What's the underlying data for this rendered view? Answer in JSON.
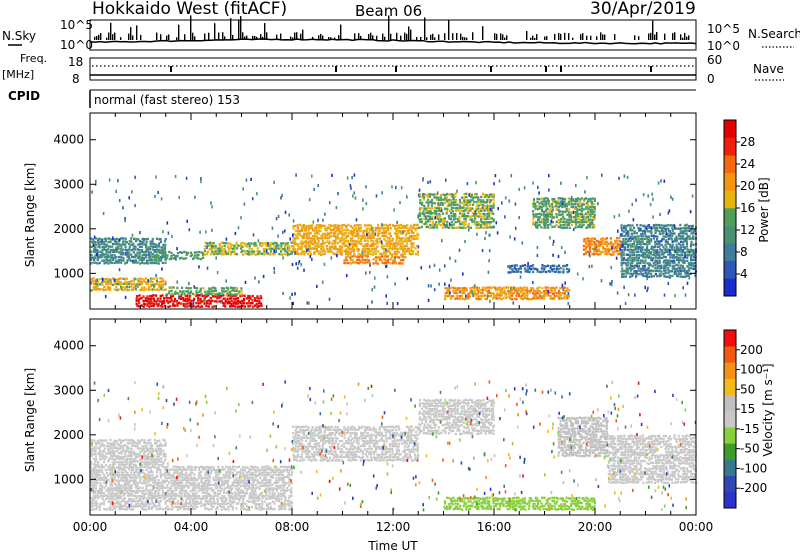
{
  "header": {
    "title": "Hokkaido West (fitACF)",
    "beam": "Beam 06",
    "date": "30/Apr/2019"
  },
  "side_labels": {
    "nsky": "N.Sky",
    "nsearch": "N.Search",
    "freq": "Freq.",
    "mhz": "[MHz]",
    "nave": "Nave",
    "cpid": "CPID",
    "mode": "normal (fast stereo) 153"
  },
  "strip_ticks": {
    "noise_left": [
      "10^5",
      "10^0"
    ],
    "noise_right": [
      "10^5",
      "10^0"
    ],
    "freq_left": [
      "18",
      "8"
    ],
    "nave_right": [
      "60",
      "0"
    ]
  },
  "colors": {
    "power": [
      "#1a2ccc",
      "#2f57b5",
      "#3e7c9b",
      "#489172",
      "#4f9e5a",
      "#e6b40c",
      "#f39511",
      "#f4680f",
      "#f01f0c",
      "#e40000"
    ],
    "velocity": [
      "#2d31c8",
      "#2f47b0",
      "#37788c",
      "#3f9b2a",
      "#88cf3c",
      "#c8c8c8",
      "#c0c0c0",
      "#f2bb1d",
      "#f29216",
      "#f05a12",
      "#ee0f0f"
    ]
  },
  "chart_data": [
    {
      "type": "heatmap",
      "name": "power",
      "ylabel": "Slant Range [km]",
      "yticks": [
        1000,
        2000,
        3000,
        4000
      ],
      "ylim": [
        200,
        4600
      ],
      "xlim": [
        0,
        24
      ],
      "colorbar": {
        "label": "Power [dB]",
        "range": [
          0,
          32
        ],
        "ticks": [
          "4",
          "8",
          "12",
          "16",
          "20",
          "24",
          "28"
        ]
      },
      "regions": [
        {
          "t": [
            0.0,
            3.0
          ],
          "r": [
            600,
            900
          ],
          "v": 18
        },
        {
          "t": [
            0.0,
            3.0
          ],
          "r": [
            1200,
            1800
          ],
          "v": 10
        },
        {
          "t": [
            1.8,
            6.8
          ],
          "r": [
            230,
            520
          ],
          "v": 30
        },
        {
          "t": [
            3.0,
            6.0
          ],
          "r": [
            500,
            700
          ],
          "v": 14
        },
        {
          "t": [
            2.5,
            4.5
          ],
          "r": [
            1300,
            1500
          ],
          "v": 13
        },
        {
          "t": [
            4.5,
            8.0
          ],
          "r": [
            1400,
            1700
          ],
          "v": 16
        },
        {
          "t": [
            8.0,
            13.0
          ],
          "r": [
            1400,
            2100
          ],
          "v": 19
        },
        {
          "t": [
            10.0,
            12.5
          ],
          "r": [
            1200,
            1400
          ],
          "v": 22
        },
        {
          "t": [
            13.0,
            16.0
          ],
          "r": [
            2000,
            2800
          ],
          "v": 15
        },
        {
          "t": [
            14.0,
            19.0
          ],
          "r": [
            400,
            700
          ],
          "v": 21
        },
        {
          "t": [
            16.5,
            19.0
          ],
          "r": [
            1000,
            1200
          ],
          "v": 7
        },
        {
          "t": [
            17.5,
            20.0
          ],
          "r": [
            2000,
            2700
          ],
          "v": 14
        },
        {
          "t": [
            19.5,
            21.0
          ],
          "r": [
            1400,
            1800
          ],
          "v": 22
        },
        {
          "t": [
            21.0,
            24.0
          ],
          "r": [
            900,
            2100
          ],
          "v": 9
        }
      ]
    },
    {
      "type": "heatmap",
      "name": "velocity",
      "ylabel": "Slant Range [km]",
      "yticks": [
        1000,
        2000,
        3000,
        4000
      ],
      "ylim": [
        200,
        4600
      ],
      "xlim": [
        0,
        24
      ],
      "xlabel": "Time UT",
      "xticks": [
        "00:00",
        "04:00",
        "08:00",
        "12:00",
        "16:00",
        "20:00",
        "00:00"
      ],
      "colorbar": {
        "label": "Velocity [m s⁻¹]",
        "range": [
          -250,
          250
        ],
        "ticks": [
          "200",
          "100",
          "50",
          "15",
          "-15",
          "-50",
          "-100",
          "-200"
        ]
      },
      "regions": [
        {
          "t": [
            0.0,
            8.0
          ],
          "r": [
            300,
            1300
          ],
          "v": 0
        },
        {
          "t": [
            0.0,
            3.0
          ],
          "r": [
            1300,
            1900
          ],
          "v": 5
        },
        {
          "t": [
            8.0,
            13.0
          ],
          "r": [
            1400,
            2200
          ],
          "v": 0
        },
        {
          "t": [
            13.0,
            16.0
          ],
          "r": [
            2000,
            2800
          ],
          "v": -5
        },
        {
          "t": [
            14.0,
            20.0
          ],
          "r": [
            300,
            600
          ],
          "v": -40
        },
        {
          "t": [
            18.5,
            20.5
          ],
          "r": [
            1500,
            2400
          ],
          "v": 35
        },
        {
          "t": [
            20.5,
            24.0
          ],
          "r": [
            900,
            2000
          ],
          "v": 3
        }
      ]
    }
  ]
}
